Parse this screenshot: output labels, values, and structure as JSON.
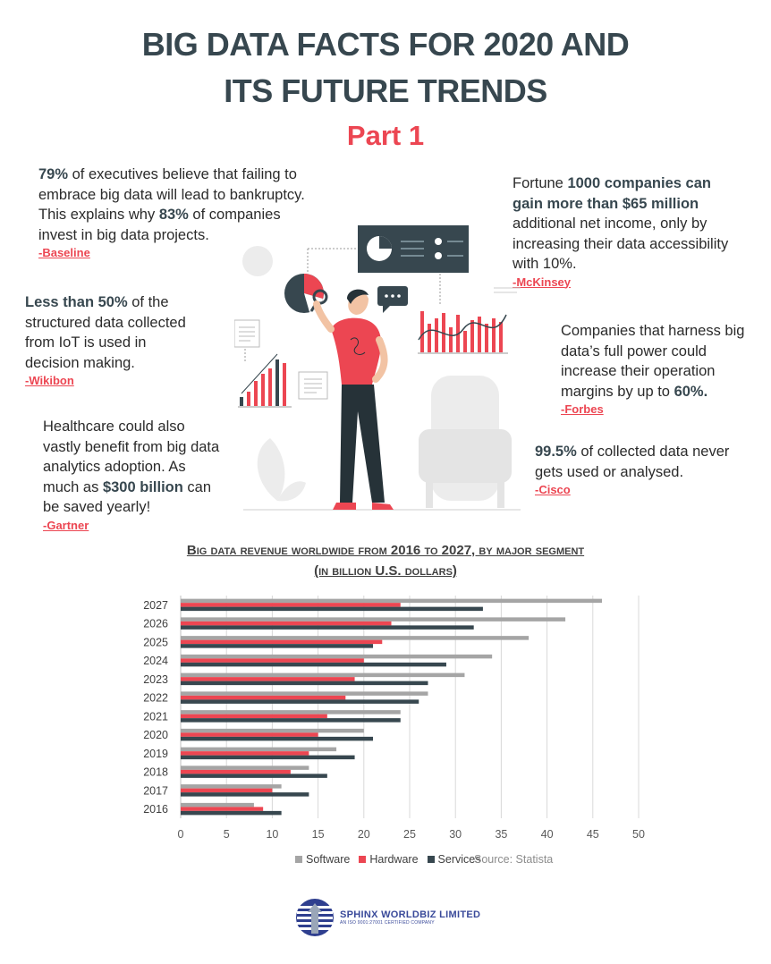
{
  "header": {
    "title_line1": "BIG DATA FACTS FOR 2020 AND",
    "title_line2": "ITS FUTURE TRENDS",
    "subtitle": "Part 1"
  },
  "facts": {
    "baseline": {
      "p1": "79%",
      "p2": " of executives believe that failing to embrace big data will lead to bankruptcy. This explains why ",
      "p3": "83%",
      "p4": " of companies invest in big data projects.",
      "source": "-Baseline"
    },
    "mckinsey": {
      "p1": "Fortune ",
      "p2": "1000 companies can gain more than $65 million",
      "p3": " additional net income, only by increasing their data accessibility with 10%.",
      "source": "-McKinsey"
    },
    "wikibon": {
      "p1": "Less than 50%",
      "p2": " of the structured data collected from IoT is used in decision making.",
      "source": "-Wikibon"
    },
    "forbes": {
      "p1": "Companies that harness big data’s full power could increase their operation margins by up to ",
      "p2": "60%.",
      "source": "-Forbes"
    },
    "gartner": {
      "p1": "Healthcare could also vastly benefit from big data analytics adoption. As much as ",
      "p2": "$300 billion",
      "p3": " can be saved yearly!",
      "source": "-Gartner"
    },
    "cisco": {
      "p1": "99.5%",
      "p2": " of collected data never gets used or analysed.",
      "source": "-Cisco"
    }
  },
  "colors": {
    "title": "#37474f",
    "accent_red": "#ec4652",
    "software": "#a5a5a5",
    "hardware": "#ec4652",
    "services": "#37474f"
  },
  "icons": [
    "pie-chart-icon",
    "dashboard-icon",
    "chat-bubble-icon",
    "bar-chart-icon",
    "document-icon",
    "magnifier-icon",
    "armchair-icon",
    "leaf-icon",
    "person-figure"
  ],
  "chart_data": {
    "type": "bar",
    "orientation": "horizontal",
    "title": "Big data revenue worldwide from 2016 to 2027, by major segment (in billion U.S. dollars)",
    "categories": [
      "2016",
      "2017",
      "2018",
      "2019",
      "2020",
      "2021",
      "2022",
      "2023",
      "2024",
      "2025",
      "2026",
      "2027"
    ],
    "series": [
      {
        "name": "Software",
        "values": [
          8,
          11,
          14,
          17,
          20,
          24,
          27,
          31,
          34,
          38,
          42,
          46
        ]
      },
      {
        "name": "Hardware",
        "values": [
          9,
          10,
          12,
          14,
          15,
          16,
          18,
          19,
          20,
          22,
          23,
          24
        ]
      },
      {
        "name": "Services",
        "values": [
          11,
          14,
          16,
          19,
          21,
          24,
          26,
          27,
          29,
          21,
          32,
          33
        ]
      }
    ],
    "xlim": [
      0,
      50
    ],
    "x_ticks": [
      "0",
      "5",
      "10",
      "15",
      "20",
      "25",
      "30",
      "35",
      "40",
      "45",
      "50"
    ],
    "grid": true,
    "legend_position": "bottom",
    "source_note": "Source: Statista"
  },
  "footer": {
    "company": "SPHINX WORLDBIZ LIMITED",
    "tagline": "AN ISO 9001:27001 CERTIFIED COMPANY"
  }
}
